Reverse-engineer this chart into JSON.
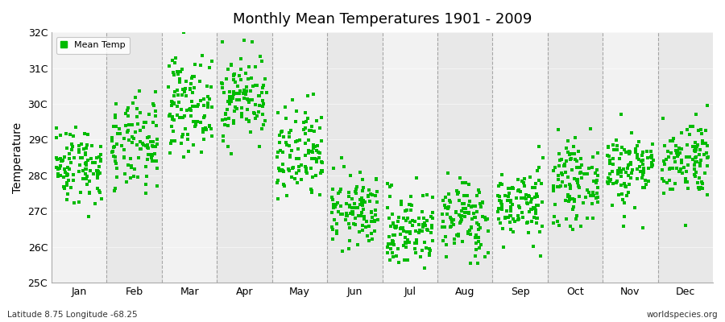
{
  "title": "Monthly Mean Temperatures 1901 - 2009",
  "ylabel": "Temperature",
  "ylim": [
    25,
    32
  ],
  "yticks": [
    25,
    26,
    27,
    28,
    29,
    30,
    31,
    32
  ],
  "ytick_labels": [
    "25C",
    "26C",
    "27C",
    "28C",
    "29C",
    "30C",
    "31C",
    "32C"
  ],
  "month_labels": [
    "Jan",
    "Feb",
    "Mar",
    "Apr",
    "May",
    "Jun",
    "Jul",
    "Aug",
    "Sep",
    "Oct",
    "Nov",
    "Dec"
  ],
  "dot_color": "#00bb00",
  "legend_label": "Mean Temp",
  "footer_left": "Latitude 8.75 Longitude -68.25",
  "footer_right": "worldspecies.org",
  "background_color": "#ffffff",
  "band_color_a": "#f2f2f2",
  "band_color_b": "#e8e8e8",
  "grid_color": "#888888",
  "num_years": 109,
  "random_seed": 42,
  "monthly_means": [
    28.3,
    28.8,
    30.0,
    30.2,
    28.5,
    27.0,
    26.5,
    26.8,
    27.2,
    27.8,
    28.2,
    28.5
  ],
  "monthly_stds": [
    0.55,
    0.65,
    0.65,
    0.6,
    0.7,
    0.5,
    0.55,
    0.55,
    0.5,
    0.55,
    0.55,
    0.55
  ]
}
